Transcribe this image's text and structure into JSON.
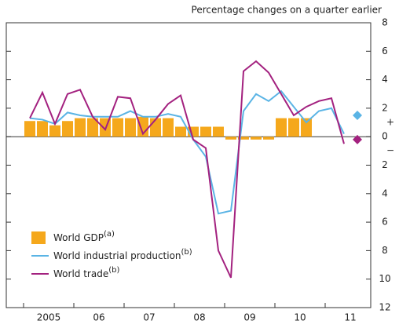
{
  "chart_data": {
    "type": "bar_line",
    "subtitle": "Percentage changes on a quarter earlier",
    "categories": [
      null,
      null,
      null,
      null,
      null,
      null,
      null,
      null,
      null,
      null,
      null,
      null,
      null,
      null,
      null,
      null,
      null,
      null,
      null,
      null,
      null,
      null,
      null,
      null,
      null,
      null
    ],
    "year_labels": [
      "2005",
      "06",
      "07",
      "08",
      "09",
      "10",
      "11"
    ],
    "series": [
      {
        "name": "World GDP",
        "note": "(a)",
        "kind": "bar",
        "color": "#f5a81c",
        "values": [
          1.1,
          1.1,
          0.8,
          1.1,
          1.3,
          1.3,
          1.3,
          1.3,
          1.3,
          1.4,
          1.3,
          1.3,
          0.7,
          0.7,
          0.7,
          0.7,
          -0.2,
          -0.2,
          -0.2,
          -0.2,
          1.3,
          1.3,
          1.3,
          null,
          null,
          null
        ]
      },
      {
        "name": "World industrial production",
        "note": "(b)",
        "kind": "line",
        "color": "#5ab4e5",
        "values": [
          1.3,
          1.2,
          0.9,
          1.7,
          1.5,
          1.4,
          1.4,
          1.4,
          1.8,
          1.4,
          1.4,
          1.6,
          1.4,
          -0.2,
          -1.4,
          -5.4,
          -5.2,
          1.8,
          3.0,
          2.5,
          3.2,
          2.1,
          1.0,
          1.8,
          2.0,
          0.2
        ],
        "estimate": 1.5
      },
      {
        "name": "World trade",
        "note": "(b)",
        "kind": "line",
        "color": "#a3217f",
        "values": [
          1.3,
          3.1,
          0.9,
          3.0,
          3.3,
          1.4,
          0.5,
          2.8,
          2.7,
          0.2,
          1.2,
          2.3,
          2.9,
          -0.2,
          -0.8,
          -8.0,
          -9.9,
          4.6,
          5.3,
          4.5,
          3.0,
          1.5,
          2.1,
          2.5,
          2.7,
          -0.5
        ],
        "estimate": -0.2
      }
    ],
    "ylim": [
      -12,
      8
    ],
    "yticks": [
      8,
      6,
      4,
      2,
      0,
      {
        "value": -2,
        "label": "2"
      },
      {
        "value": -4,
        "label": "4"
      },
      {
        "value": -6,
        "label": "6"
      },
      {
        "value": -8,
        "label": "8"
      },
      {
        "value": -10,
        "label": "10"
      },
      {
        "value": -12,
        "label": "12"
      }
    ],
    "sign_labels": [
      "+",
      "−"
    ]
  }
}
